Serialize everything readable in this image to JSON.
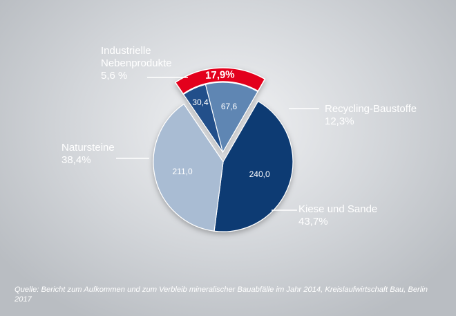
{
  "colors": {
    "kiese": "#0c3a73",
    "natursteine": "#a9bcd3",
    "industrie": "#21508a",
    "recycling": "#5f86b3",
    "highlight": "#e3001b"
  },
  "chart_data": {
    "type": "pie",
    "title": "",
    "slices": [
      {
        "label": "Kiese und Sande",
        "value": 240.0,
        "value_label": "240,0",
        "percent": "43,7%"
      },
      {
        "label": "Natursteine",
        "value": 211.0,
        "value_label": "211,0",
        "percent": "38,4%"
      },
      {
        "label": "Industrielle Nebenprodukte",
        "value": 30.4,
        "value_label": "30,4",
        "percent": "5,6 %"
      },
      {
        "label": "Recycling-Baustoffe",
        "value": 67.6,
        "value_label": "67,6",
        "percent": "12,3%"
      }
    ],
    "highlight": {
      "label": "17,9%",
      "covers": [
        "Industrielle Nebenprodukte",
        "Recycling-Baustoffe"
      ]
    },
    "source": "Quelle: Bericht zum Aufkommen und zum Verbleib mineralischer Bauabfälle im Jahr 2014, Kreislaufwirtschaft Bau, Berlin 2017"
  },
  "labels": {
    "industrie_line1": "Industrielle",
    "industrie_line2": "Nebenprodukte",
    "industrie_pct": "5,6 %",
    "recycling_name": "Recycling-Baustoffe",
    "recycling_pct": "12,3%",
    "natursteine_name": "Natursteine",
    "natursteine_pct": "38,4%",
    "kiese_name": "Kiese und Sande",
    "kiese_pct": "43,7%"
  }
}
